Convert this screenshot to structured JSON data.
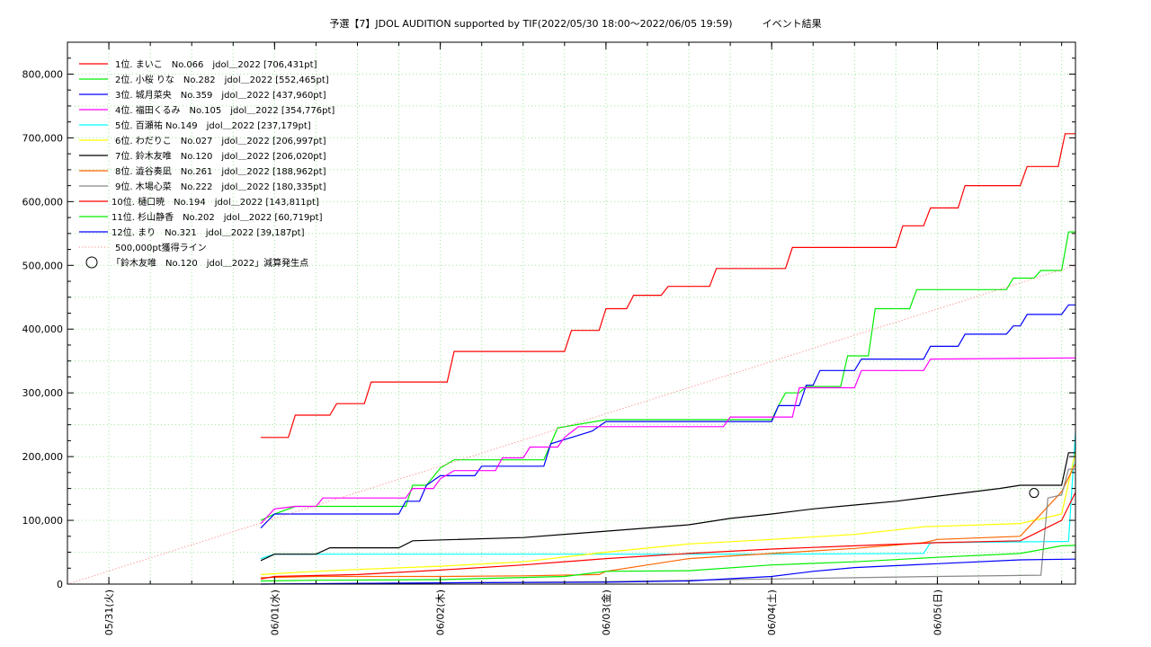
{
  "chart_data": {
    "type": "line",
    "title": "予選【7】JDOL AUDITION supported by TIF(2022/05/30 18:00～2022/06/05 19:59)　　　イベント結果",
    "xlabel": "",
    "ylabel": "",
    "x_range": [
      "2022/05/30 18:00",
      "2022/06/05 20:00"
    ],
    "ylim": [
      0,
      850000
    ],
    "x_ticks": [
      "05/31(火)",
      "06/01(水)",
      "06/02(木)",
      "06/03(金)",
      "06/04(土)",
      "06/05(日)"
    ],
    "y_ticks": [
      "0",
      "100,000",
      "200,000",
      "300,000",
      "400,000",
      "500,000",
      "600,000",
      "700,000",
      "800,000"
    ],
    "grid": true,
    "legend_position": "top-left",
    "series": [
      {
        "name": "1位. まいこ　No.066　jdol＿2022 [706,431pt]",
        "color": "#ff0000",
        "points": [
          [
            "05/31 22:00",
            230000
          ],
          [
            "06/01 02:00",
            230000
          ],
          [
            "06/01 03:00",
            265000
          ],
          [
            "06/01 08:00",
            265000
          ],
          [
            "06/01 09:00",
            283000
          ],
          [
            "06/01 13:00",
            283000
          ],
          [
            "06/01 14:00",
            317000
          ],
          [
            "06/02 01:00",
            317000
          ],
          [
            "06/02 02:00",
            365000
          ],
          [
            "06/02 18:00",
            365000
          ],
          [
            "06/02 19:00",
            398000
          ],
          [
            "06/02 23:00",
            398000
          ],
          [
            "06/03 00:00",
            432000
          ],
          [
            "06/03 03:00",
            432000
          ],
          [
            "06/03 04:00",
            453000
          ],
          [
            "06/03 08:00",
            453000
          ],
          [
            "06/03 09:00",
            467000
          ],
          [
            "06/03 15:00",
            467000
          ],
          [
            "06/03 16:00",
            495000
          ],
          [
            "06/04 02:00",
            495000
          ],
          [
            "06/04 03:00",
            528000
          ],
          [
            "06/04 18:00",
            528000
          ],
          [
            "06/04 19:00",
            562000
          ],
          [
            "06/04 22:00",
            562000
          ],
          [
            "06/04 23:00",
            590000
          ],
          [
            "06/05 03:00",
            590000
          ],
          [
            "06/05 04:00",
            625000
          ],
          [
            "06/05 12:00",
            625000
          ],
          [
            "06/05 13:00",
            655000
          ],
          [
            "06/05 17:30",
            655000
          ],
          [
            "06/05 18:30",
            706431
          ],
          [
            "06/05 20:00",
            706431
          ]
        ]
      },
      {
        "name": "2位. 小桜 りな　No.282　jdol＿2022 [552,465pt]",
        "color": "#00ee00",
        "points": [
          [
            "05/31 22:00",
            100000
          ],
          [
            "06/01 00:00",
            110000
          ],
          [
            "06/01 03:00",
            122000
          ],
          [
            "06/01 19:00",
            122000
          ],
          [
            "06/01 20:00",
            155000
          ],
          [
            "06/01 22:00",
            155000
          ],
          [
            "06/02 00:00",
            182000
          ],
          [
            "06/02 02:00",
            195000
          ],
          [
            "06/02 15:00",
            195000
          ],
          [
            "06/02 17:00",
            245000
          ],
          [
            "06/03 00:00",
            258000
          ],
          [
            "06/04 00:00",
            258000
          ],
          [
            "06/04 01:00",
            280000
          ],
          [
            "06/04 02:00",
            300000
          ],
          [
            "06/04 04:00",
            300000
          ],
          [
            "06/04 05:00",
            310000
          ],
          [
            "06/04 10:00",
            310000
          ],
          [
            "06/04 11:00",
            358000
          ],
          [
            "06/04 14:00",
            358000
          ],
          [
            "06/04 15:00",
            432000
          ],
          [
            "06/04 20:00",
            432000
          ],
          [
            "06/04 21:00",
            462000
          ],
          [
            "06/05 10:00",
            462000
          ],
          [
            "06/05 11:00",
            480000
          ],
          [
            "06/05 14:00",
            480000
          ],
          [
            "06/05 15:00",
            492000
          ],
          [
            "06/05 18:00",
            492000
          ],
          [
            "06/05 19:00",
            552465
          ],
          [
            "06/05 20:00",
            552465
          ]
        ]
      },
      {
        "name": "3位. 城月菜央　No.359　jdol＿2022 [437,960pt]",
        "color": "#0000ff",
        "points": [
          [
            "05/31 22:00",
            88000
          ],
          [
            "06/01 00:00",
            110000
          ],
          [
            "06/01 18:00",
            110000
          ],
          [
            "06/01 19:00",
            130000
          ],
          [
            "06/01 21:00",
            130000
          ],
          [
            "06/01 22:00",
            155000
          ],
          [
            "06/02 00:00",
            170000
          ],
          [
            "06/02 05:00",
            170000
          ],
          [
            "06/02 06:00",
            185000
          ],
          [
            "06/02 15:00",
            185000
          ],
          [
            "06/02 16:00",
            220000
          ],
          [
            "06/02 22:00",
            240000
          ],
          [
            "06/03 00:00",
            255000
          ],
          [
            "06/04 00:00",
            255000
          ],
          [
            "06/04 01:00",
            280000
          ],
          [
            "06/04 04:00",
            280000
          ],
          [
            "06/04 05:00",
            312000
          ],
          [
            "06/04 06:00",
            312000
          ],
          [
            "06/04 07:00",
            335000
          ],
          [
            "06/04 12:00",
            335000
          ],
          [
            "06/04 13:00",
            353000
          ],
          [
            "06/04 22:00",
            353000
          ],
          [
            "06/04 23:00",
            373000
          ],
          [
            "06/05 03:00",
            373000
          ],
          [
            "06/05 04:00",
            392000
          ],
          [
            "06/05 10:00",
            392000
          ],
          [
            "06/05 11:00",
            405000
          ],
          [
            "06/05 12:00",
            405000
          ],
          [
            "06/05 13:00",
            423000
          ],
          [
            "06/05 18:00",
            423000
          ],
          [
            "06/05 19:00",
            437960
          ],
          [
            "06/05 20:00",
            437960
          ]
        ]
      },
      {
        "name": "4位. 福田くるみ　No.105　jdol＿2022 [354,776pt]",
        "color": "#ff00ff",
        "points": [
          [
            "05/31 22:00",
            95000
          ],
          [
            "06/01 00:00",
            118000
          ],
          [
            "06/01 03:00",
            122000
          ],
          [
            "06/01 06:00",
            122000
          ],
          [
            "06/01 07:00",
            135000
          ],
          [
            "06/01 19:00",
            135000
          ],
          [
            "06/01 20:00",
            150000
          ],
          [
            "06/01 23:00",
            150000
          ],
          [
            "06/02 00:00",
            165000
          ],
          [
            "06/02 02:00",
            178000
          ],
          [
            "06/02 08:00",
            178000
          ],
          [
            "06/02 09:00",
            198000
          ],
          [
            "06/02 12:00",
            198000
          ],
          [
            "06/02 13:00",
            215000
          ],
          [
            "06/02 17:00",
            215000
          ],
          [
            "06/02 18:00",
            230000
          ],
          [
            "06/02 20:00",
            247000
          ],
          [
            "06/03 17:00",
            247000
          ],
          [
            "06/03 18:00",
            262000
          ],
          [
            "06/04 03:00",
            262000
          ],
          [
            "06/04 04:00",
            308000
          ],
          [
            "06/04 12:00",
            308000
          ],
          [
            "06/04 13:00",
            335000
          ],
          [
            "06/04 22:00",
            335000
          ],
          [
            "06/04 23:00",
            353000
          ],
          [
            "06/05 20:00",
            354776
          ]
        ]
      },
      {
        "name": "5位. 百瀬祐 No.149　jdol＿2022 [237,179pt]",
        "color": "#00ffff",
        "points": [
          [
            "05/31 22:00",
            40000
          ],
          [
            "06/01 00:00",
            47000
          ],
          [
            "06/02 00:00",
            47000
          ],
          [
            "06/03 00:00",
            47000
          ],
          [
            "06/04 00:00",
            47000
          ],
          [
            "06/04 22:00",
            48000
          ],
          [
            "06/04 23:00",
            65000
          ],
          [
            "06/05 19:00",
            67000
          ],
          [
            "06/05 20:00",
            237179
          ]
        ]
      },
      {
        "name": "6位. わだりこ　No.027　jdol＿2022 [206,997pt]",
        "color": "#ffff00",
        "points": [
          [
            "05/31 22:00",
            15000
          ],
          [
            "06/01 06:00",
            20000
          ],
          [
            "06/01 12:00",
            23000
          ],
          [
            "06/02 00:00",
            28000
          ],
          [
            "06/02 12:00",
            35000
          ],
          [
            "06/03 00:00",
            50000
          ],
          [
            "06/03 12:00",
            63000
          ],
          [
            "06/04 00:00",
            70000
          ],
          [
            "06/04 12:00",
            78000
          ],
          [
            "06/04 18:00",
            85000
          ],
          [
            "06/04 22:00",
            90000
          ],
          [
            "06/05 12:00",
            95000
          ],
          [
            "06/05 18:00",
            110000
          ],
          [
            "06/05 20:00",
            206997
          ]
        ]
      },
      {
        "name": "7位. 鈴木友唯　No.120　jdol＿2022 [206,020pt]",
        "color": "#000000",
        "points": [
          [
            "05/31 22:00",
            37000
          ],
          [
            "06/01 00:00",
            47000
          ],
          [
            "06/01 06:00",
            47000
          ],
          [
            "06/01 08:00",
            57000
          ],
          [
            "06/01 18:00",
            57000
          ],
          [
            "06/01 20:00",
            68000
          ],
          [
            "06/02 12:00",
            73000
          ],
          [
            "06/03 00:00",
            83000
          ],
          [
            "06/03 12:00",
            93000
          ],
          [
            "06/03 18:00",
            103000
          ],
          [
            "06/04 00:00",
            110000
          ],
          [
            "06/04 06:00",
            118000
          ],
          [
            "06/04 12:00",
            124000
          ],
          [
            "06/04 18:00",
            130000
          ],
          [
            "06/05 00:00",
            138000
          ],
          [
            "06/05 09:00",
            150000
          ],
          [
            "06/05 12:00",
            155000
          ],
          [
            "06/05 18:00",
            155000
          ],
          [
            "06/05 19:00",
            206020
          ],
          [
            "06/05 20:00",
            206020
          ]
        ]
      },
      {
        "name": "8位. 澁谷奏凪　No.261　jdol＿2022 [188,962pt]",
        "color": "#ff6600",
        "points": [
          [
            "05/31 22:00",
            10000
          ],
          [
            "06/01 06:00",
            12000
          ],
          [
            "06/02 00:00",
            12000
          ],
          [
            "06/02 12:00",
            13000
          ],
          [
            "06/02 23:00",
            15000
          ],
          [
            "06/03 00:00",
            20000
          ],
          [
            "06/03 12:00",
            40000
          ],
          [
            "06/04 00:00",
            48000
          ],
          [
            "06/04 12:00",
            56000
          ],
          [
            "06/04 22:00",
            65000
          ],
          [
            "06/05 00:00",
            70000
          ],
          [
            "06/05 12:00",
            75000
          ],
          [
            "06/05 18:00",
            145000
          ],
          [
            "06/05 20:00",
            188962
          ]
        ]
      },
      {
        "name": "9位. 木場心菜　No.222　jdol＿2022 [180,335pt]",
        "color": "#888888",
        "points": [
          [
            "05/31 22:00",
            0
          ],
          [
            "06/02 00:00",
            2000
          ],
          [
            "06/03 00:00",
            4000
          ],
          [
            "06/04 00:00",
            8000
          ],
          [
            "06/04 12:00",
            10000
          ],
          [
            "06/05 00:00",
            12000
          ],
          [
            "06/05 15:00",
            14000
          ],
          [
            "06/05 16:00",
            135000
          ],
          [
            "06/05 18:00",
            140000
          ],
          [
            "06/05 19:00",
            180335
          ],
          [
            "06/05 20:00",
            180335
          ]
        ]
      },
      {
        "name": "10位. 樋口暁　No.194　jdol＿2022 [143,811pt]",
        "color": "#ff0000",
        "points": [
          [
            "05/31 22:00",
            8000
          ],
          [
            "06/01 00:00",
            12000
          ],
          [
            "06/01 12:00",
            15000
          ],
          [
            "06/02 00:00",
            22000
          ],
          [
            "06/02 12:00",
            30000
          ],
          [
            "06/03 00:00",
            40000
          ],
          [
            "06/03 12:00",
            48000
          ],
          [
            "06/04 00:00",
            55000
          ],
          [
            "06/04 12:00",
            60000
          ],
          [
            "06/05 00:00",
            65000
          ],
          [
            "06/05 12:00",
            68000
          ],
          [
            "06/05 18:00",
            100000
          ],
          [
            "06/05 20:00",
            143811
          ]
        ]
      },
      {
        "name": "11位. 杉山静香　No.202　jdol＿2022 [60,719pt]",
        "color": "#00ee00",
        "points": [
          [
            "05/31 22:00",
            5000
          ],
          [
            "06/01 06:00",
            6000
          ],
          [
            "06/02 00:00",
            7000
          ],
          [
            "06/02 18:00",
            12000
          ],
          [
            "06/03 00:00",
            20000
          ],
          [
            "06/03 12:00",
            21000
          ],
          [
            "06/04 00:00",
            30000
          ],
          [
            "06/04 12:00",
            35000
          ],
          [
            "06/05 00:00",
            42000
          ],
          [
            "06/05 12:00",
            48000
          ],
          [
            "06/05 18:00",
            60000
          ],
          [
            "06/05 20:00",
            60719
          ]
        ]
      },
      {
        "name": "12位. まり　No.321　jdol＿2022 [39,187pt]",
        "color": "#0000ff",
        "points": [
          [
            "05/31 22:00",
            0
          ],
          [
            "06/02 00:00",
            2000
          ],
          [
            "06/03 00:00",
            3000
          ],
          [
            "06/03 12:00",
            5000
          ],
          [
            "06/04 00:00",
            12000
          ],
          [
            "06/04 06:00",
            20000
          ],
          [
            "06/04 12:00",
            26000
          ],
          [
            "06/05 00:00",
            32000
          ],
          [
            "06/05 12:00",
            38000
          ],
          [
            "06/05 20:00",
            39187
          ]
        ]
      },
      {
        "name": "500,000pt獲得ライン",
        "color": "#ff7777",
        "style": "dotted",
        "points": [
          [
            "05/30 18:00",
            0
          ],
          [
            "06/05 20:00",
            500000
          ]
        ]
      }
    ],
    "markers": [
      {
        "name": "「鈴木友唯　No.120　jdol＿2022」減算発生点",
        "shape": "circle",
        "x": "06/05 14:00",
        "y": 143000
      }
    ]
  }
}
